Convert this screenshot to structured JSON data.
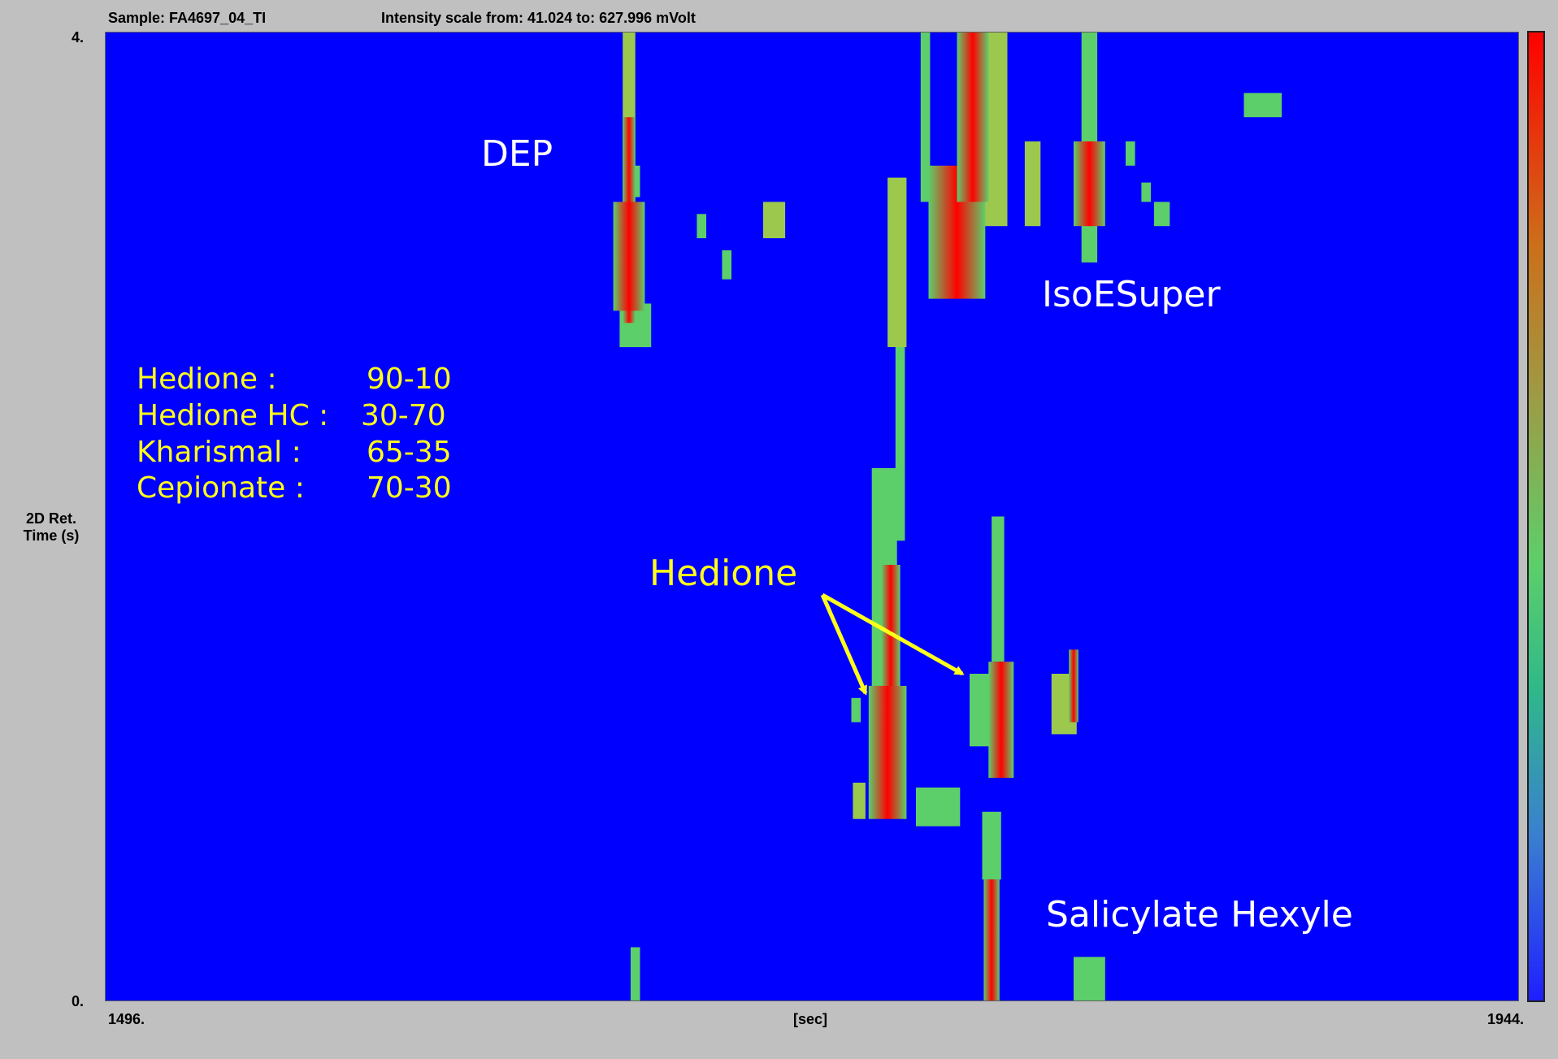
{
  "header": {
    "sample": "Sample: FA4697_04_TI",
    "intensity": "Intensity scale from: 41.024 to: 627.996 mVolt"
  },
  "chart_data": {
    "type": "heatmap",
    "title": "Sample: FA4697_04_TI",
    "subtitle": "Intensity scale from: 41.024 to: 627.996 mVolt",
    "xlabel": "[sec]",
    "ylabel_line1": "2D Ret.",
    "ylabel_line2": "Time (s)",
    "xlim": [
      1496,
      1944
    ],
    "ylim": [
      0,
      4
    ],
    "x_ticks": {
      "min": "1496.",
      "max": "1944."
    },
    "y_ticks": {
      "min": "0.",
      "max": "4."
    },
    "intensity_range": [
      41.024,
      627.996
    ],
    "colors": {
      "background": "#0000ff",
      "low": "#5ccf6a",
      "high": "#ff0000"
    },
    "peaks": [
      {
        "x": 1662,
        "y0": 2.8,
        "y1": 4.0,
        "width": 4,
        "level": 0.6
      },
      {
        "x": 1662,
        "y0": 2.8,
        "y1": 3.65,
        "width": 4,
        "level": 1.0
      },
      {
        "x": 1662,
        "y0": 2.85,
        "y1": 3.3,
        "width": 10,
        "level": 1.0
      },
      {
        "x": 1664,
        "y0": 2.7,
        "y1": 2.88,
        "width": 10,
        "level": 0.5
      },
      {
        "x": 1664,
        "y0": 3.32,
        "y1": 3.45,
        "width": 3,
        "level": 0.5
      },
      {
        "x": 1664,
        "y0": 0.0,
        "y1": 0.22,
        "width": 3,
        "level": 0.4
      },
      {
        "x": 1685,
        "y0": 3.15,
        "y1": 3.25,
        "width": 3,
        "level": 0.5
      },
      {
        "x": 1693,
        "y0": 2.98,
        "y1": 3.1,
        "width": 3,
        "level": 0.4
      },
      {
        "x": 1708,
        "y0": 3.15,
        "y1": 3.3,
        "width": 7,
        "level": 0.7
      },
      {
        "x": 1743,
        "y0": 0.92,
        "y1": 2.2,
        "width": 8,
        "level": 0.5
      },
      {
        "x": 1744,
        "y0": 0.75,
        "y1": 1.3,
        "width": 12,
        "level": 1.0
      },
      {
        "x": 1745,
        "y0": 0.85,
        "y1": 1.8,
        "width": 6,
        "level": 0.9
      },
      {
        "x": 1747,
        "y0": 2.7,
        "y1": 3.4,
        "width": 6,
        "level": 0.6
      },
      {
        "x": 1748,
        "y0": 1.9,
        "y1": 2.8,
        "width": 3,
        "level": 0.45
      },
      {
        "x": 1735,
        "y0": 0.75,
        "y1": 0.9,
        "width": 4,
        "level": 0.6
      },
      {
        "x": 1734,
        "y0": 1.15,
        "y1": 1.25,
        "width": 3,
        "level": 0.35
      },
      {
        "x": 1760,
        "y0": 0.72,
        "y1": 0.88,
        "width": 14,
        "level": 0.5
      },
      {
        "x": 1766,
        "y0": 2.9,
        "y1": 3.45,
        "width": 18,
        "level": 1.0
      },
      {
        "x": 1756,
        "y0": 3.3,
        "y1": 4.0,
        "width": 3,
        "level": 0.5
      },
      {
        "x": 1771,
        "y0": 3.3,
        "y1": 4.0,
        "width": 10,
        "level": 1.0
      },
      {
        "x": 1778,
        "y0": 3.2,
        "y1": 4.0,
        "width": 8,
        "level": 0.8
      },
      {
        "x": 1790,
        "y0": 3.2,
        "y1": 3.55,
        "width": 5,
        "level": 0.6
      },
      {
        "x": 1774,
        "y0": 1.05,
        "y1": 1.35,
        "width": 8,
        "level": 0.35
      },
      {
        "x": 1780,
        "y0": 0.92,
        "y1": 1.4,
        "width": 8,
        "level": 1.0
      },
      {
        "x": 1779,
        "y0": 1.4,
        "y1": 2.0,
        "width": 4,
        "level": 0.5
      },
      {
        "x": 1777,
        "y0": 0.0,
        "y1": 0.5,
        "width": 5,
        "level": 1.0
      },
      {
        "x": 1777,
        "y0": 0.5,
        "y1": 0.78,
        "width": 6,
        "level": 0.45
      },
      {
        "x": 1800,
        "y0": 1.1,
        "y1": 1.35,
        "width": 8,
        "level": 0.7
      },
      {
        "x": 1803,
        "y0": 1.15,
        "y1": 1.45,
        "width": 3,
        "level": 1.0
      },
      {
        "x": 1808,
        "y0": 3.05,
        "y1": 4.0,
        "width": 5,
        "level": 0.5
      },
      {
        "x": 1808,
        "y0": 3.2,
        "y1": 3.55,
        "width": 10,
        "level": 1.0
      },
      {
        "x": 1808,
        "y0": 0.0,
        "y1": 0.18,
        "width": 10,
        "level": 0.4
      },
      {
        "x": 1821,
        "y0": 3.45,
        "y1": 3.55,
        "width": 3,
        "level": 0.45
      },
      {
        "x": 1826,
        "y0": 3.3,
        "y1": 3.38,
        "width": 3,
        "level": 0.45
      },
      {
        "x": 1831,
        "y0": 3.2,
        "y1": 3.3,
        "width": 5,
        "level": 0.45
      },
      {
        "x": 1863,
        "y0": 3.65,
        "y1": 3.75,
        "width": 12,
        "level": 0.45
      }
    ]
  },
  "annotations": {
    "dep": "DEP",
    "isoesuper": "IsoESuper",
    "salicylate": "Salicylate Hexyle",
    "hedione": "Hedione"
  },
  "legend_rows": [
    {
      "name": "Hedione :",
      "value": "90-10"
    },
    {
      "name": "Hedione HC :",
      "value": "30-70"
    },
    {
      "name": "Kharismal :",
      "value": "65-35"
    },
    {
      "name": "Cepionate :",
      "value": "70-30"
    }
  ]
}
